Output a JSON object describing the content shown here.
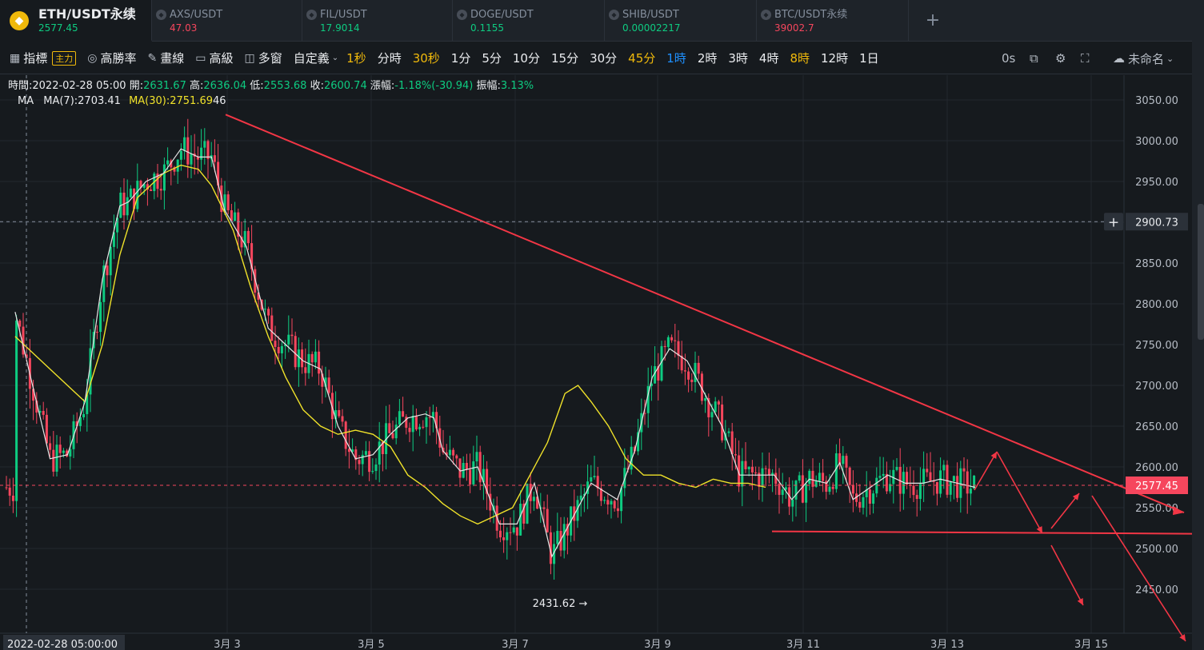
{
  "tabs": [
    {
      "name": "ETH/USDT永续",
      "price": "2577.45",
      "dir": "up",
      "active": true
    },
    {
      "name": "AXS/USDT",
      "price": "47.03",
      "dir": "down"
    },
    {
      "name": "FIL/USDT",
      "price": "17.9014",
      "dir": "up"
    },
    {
      "name": "DOGE/USDT",
      "price": "0.1155",
      "dir": "up"
    },
    {
      "name": "SHIB/USDT",
      "price": "0.00002217",
      "dir": "up"
    },
    {
      "name": "BTC/USDT永续",
      "price": "39002.7",
      "dir": "down"
    }
  ],
  "add_tab": "+",
  "toolbar": {
    "indicators_label": "指標",
    "main_tag": "主力",
    "win_rate_label": "高勝率",
    "draw_label": "畫線",
    "advanced_label": "高級",
    "multi_window_label": "多窗",
    "custom_label": "自定義",
    "intervals": [
      {
        "label": "1秒",
        "style": "yel"
      },
      {
        "label": "分時",
        "style": ""
      },
      {
        "label": "30秒",
        "style": "yel"
      },
      {
        "label": "1分",
        "style": ""
      },
      {
        "label": "5分",
        "style": ""
      },
      {
        "label": "10分",
        "style": ""
      },
      {
        "label": "15分",
        "style": ""
      },
      {
        "label": "30分",
        "style": ""
      },
      {
        "label": "45分",
        "style": "yel"
      },
      {
        "label": "1時",
        "style": "act"
      },
      {
        "label": "2時",
        "style": ""
      },
      {
        "label": "3時",
        "style": ""
      },
      {
        "label": "4時",
        "style": ""
      },
      {
        "label": "8時",
        "style": "yel"
      },
      {
        "label": "12時",
        "style": ""
      },
      {
        "label": "1日",
        "style": ""
      }
    ],
    "countdown": "0s",
    "cloud_label": "未命名"
  },
  "ohlc": {
    "time_label": "時間:",
    "time": "2022-02-28 05:00",
    "open_label": "開:",
    "open": "2631.67",
    "high_label": "高:",
    "high": "2636.04",
    "low_label": "低:",
    "low": "2553.68",
    "close_label": "收:",
    "close": "2600.74",
    "change_label": "漲幅:",
    "change": "-1.18%(-30.94)",
    "amp_label": "振幅:",
    "amp": "3.13%"
  },
  "ma": {
    "label": "MA",
    "ma7": "MA(7):2703.41",
    "ma30": "MA(30):2751.69",
    "hidden_tail": "46"
  },
  "colors": {
    "bg": "#161a1e",
    "up": "#0ecb81",
    "down": "#f6465d",
    "ma7": "#e6e6e6",
    "ma30": "#f0e22a",
    "trend": "#f23645"
  },
  "chart_data": {
    "type": "candlestick",
    "y_ticks": [
      "3050.00",
      "3000.00",
      "2950.00",
      "2900.00",
      "2850.00",
      "2800.00",
      "2750.00",
      "2700.00",
      "2650.00",
      "2600.00",
      "2550.00",
      "2500.00",
      "2450.00"
    ],
    "ylim": [
      2410,
      3082
    ],
    "x_labels": [
      "2022-02-28 05:00:00",
      "3月 3",
      "3月 5",
      "3月 7",
      "3月 9",
      "3月 11",
      "3月 13",
      "3月 15"
    ],
    "crosshair_price": "2900.73",
    "last_price": "2577.45",
    "low_annotation": "2431.62",
    "ma7_path": [
      [
        2790,
        2
      ],
      [
        2700,
        6
      ],
      [
        2610,
        10
      ],
      [
        2615,
        14
      ],
      [
        2680,
        18
      ],
      [
        2830,
        22
      ],
      [
        2920,
        26
      ],
      [
        2925,
        28
      ],
      [
        2950,
        32
      ],
      [
        2960,
        36
      ],
      [
        2990,
        40
      ],
      [
        2980,
        44
      ],
      [
        2980,
        47
      ],
      [
        2915,
        50
      ],
      [
        2870,
        55
      ],
      [
        2770,
        60
      ],
      [
        2750,
        64
      ],
      [
        2730,
        68
      ],
      [
        2720,
        72
      ],
      [
        2650,
        76
      ],
      [
        2610,
        80
      ],
      [
        2615,
        84
      ],
      [
        2640,
        88
      ],
      [
        2660,
        92
      ],
      [
        2665,
        96
      ],
      [
        2660,
        98
      ],
      [
        2620,
        100
      ],
      [
        2595,
        104
      ],
      [
        2600,
        108
      ],
      [
        2530,
        113
      ],
      [
        2530,
        117
      ],
      [
        2580,
        121
      ],
      [
        2490,
        125
      ],
      [
        2540,
        130
      ],
      [
        2580,
        134
      ],
      [
        2570,
        137
      ],
      [
        2560,
        140
      ],
      [
        2620,
        144
      ],
      [
        2710,
        148
      ],
      [
        2745,
        152
      ],
      [
        2730,
        156
      ],
      [
        2690,
        160
      ],
      [
        2650,
        164
      ],
      [
        2590,
        168
      ],
      [
        2590,
        172
      ],
      [
        2590,
        176
      ],
      [
        2560,
        180
      ],
      [
        2585,
        184
      ],
      [
        2580,
        188
      ],
      [
        2605,
        191
      ],
      [
        2560,
        194
      ],
      [
        2575,
        198
      ],
      [
        2590,
        202
      ],
      [
        2580,
        206
      ],
      [
        2580,
        210
      ],
      [
        2585,
        214
      ],
      [
        2580,
        218
      ],
      [
        2575,
        222
      ]
    ],
    "ma30_path": [
      [
        2760,
        2
      ],
      [
        2720,
        10
      ],
      [
        2690,
        16
      ],
      [
        2680,
        18
      ],
      [
        2750,
        22
      ],
      [
        2860,
        26
      ],
      [
        2930,
        30
      ],
      [
        2960,
        36
      ],
      [
        2970,
        40
      ],
      [
        2965,
        44
      ],
      [
        2945,
        47
      ],
      [
        2890,
        52
      ],
      [
        2820,
        56
      ],
      [
        2760,
        60
      ],
      [
        2710,
        64
      ],
      [
        2670,
        68
      ],
      [
        2650,
        72
      ],
      [
        2640,
        76
      ],
      [
        2645,
        80
      ],
      [
        2640,
        84
      ],
      [
        2625,
        88
      ],
      [
        2590,
        92
      ],
      [
        2575,
        96
      ],
      [
        2555,
        100
      ],
      [
        2540,
        104
      ],
      [
        2530,
        108
      ],
      [
        2540,
        112
      ],
      [
        2550,
        116
      ],
      [
        2590,
        120
      ],
      [
        2630,
        124
      ],
      [
        2690,
        128
      ],
      [
        2700,
        131
      ],
      [
        2680,
        134
      ],
      [
        2650,
        138
      ],
      [
        2610,
        142
      ],
      [
        2590,
        146
      ],
      [
        2590,
        150
      ],
      [
        2580,
        154
      ],
      [
        2575,
        158
      ],
      [
        2585,
        162
      ],
      [
        2580,
        166
      ],
      [
        2580,
        170
      ],
      [
        2575,
        174
      ]
    ],
    "trendline": [
      [
        3032,
        31
      ],
      [
        2544,
        160
      ]
    ],
    "support": [
      [
        2521,
        107
      ],
      [
        2522,
        163
      ]
    ],
    "arrows": [
      [
        [
          2578,
          135
        ],
        [
          2619,
          138
        ]
      ],
      [
        [
          2619,
          138
        ],
        [
          2522,
          145
        ]
      ],
      [
        [
          2522,
          145
        ],
        [
          2564,
          150
        ]
      ],
      [
        [
          2564,
          150
        ],
        [
          2542,
          165
        ]
      ],
      [
        [
          2525,
          146
        ],
        [
          2457,
          150
        ]
      ],
      [
        [
          2560,
          151
        ],
        [
          2398,
          165
        ]
      ]
    ]
  }
}
